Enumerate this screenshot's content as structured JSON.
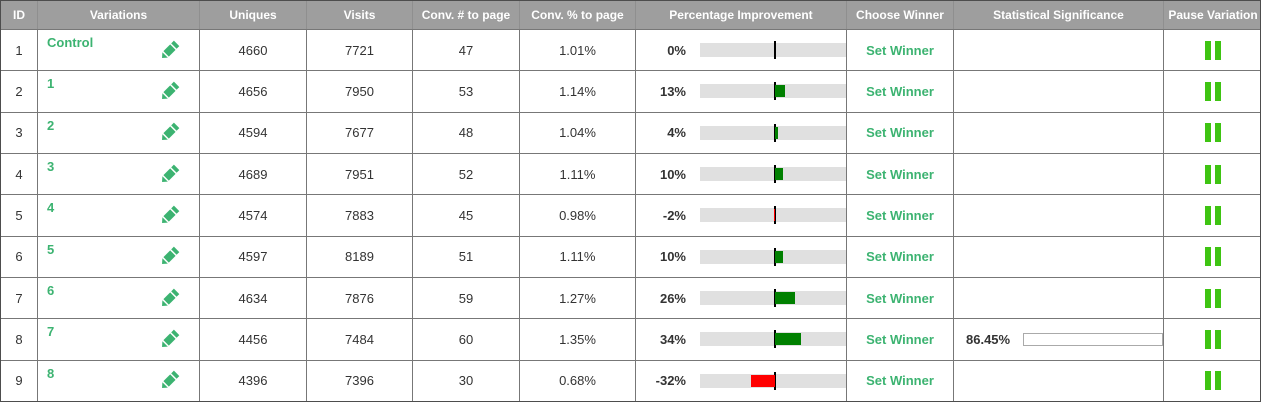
{
  "table": {
    "columns": [
      {
        "label": "ID"
      },
      {
        "label": "Variations"
      },
      {
        "label": "Uniques"
      },
      {
        "label": "Visits"
      },
      {
        "label": "Conv. # to page"
      },
      {
        "label": "Conv. % to page"
      },
      {
        "label": "Percentage Improvement"
      },
      {
        "label": "Choose Winner"
      },
      {
        "label": "Statistical Significance"
      },
      {
        "label": "Pause Variation"
      }
    ],
    "choose_winner_label": "Set Winner",
    "colors": {
      "accent_green": "#3cb371",
      "improvement_positive": "#008000",
      "improvement_negative": "#ff0000",
      "improvement_track": "#e0e0e0",
      "significance_fill": "#76c476",
      "pause_green": "#3ec412",
      "header_background": "#9e9e9e"
    },
    "rows": [
      {
        "id": "1",
        "name": "Control",
        "uniques": "4660",
        "visits": "7721",
        "conversions": "47",
        "conv_rate": "1.01%",
        "improvement": "0%",
        "improvement_value": 0,
        "significance": null,
        "significance_value": null
      },
      {
        "id": "2",
        "name": "1",
        "uniques": "4656",
        "visits": "7950",
        "conversions": "53",
        "conv_rate": "1.14%",
        "improvement": "13%",
        "improvement_value": 13,
        "significance": null,
        "significance_value": null
      },
      {
        "id": "3",
        "name": "2",
        "uniques": "4594",
        "visits": "7677",
        "conversions": "48",
        "conv_rate": "1.04%",
        "improvement": "4%",
        "improvement_value": 4,
        "significance": null,
        "significance_value": null
      },
      {
        "id": "4",
        "name": "3",
        "uniques": "4689",
        "visits": "7951",
        "conversions": "52",
        "conv_rate": "1.11%",
        "improvement": "10%",
        "improvement_value": 10,
        "significance": null,
        "significance_value": null
      },
      {
        "id": "5",
        "name": "4",
        "uniques": "4574",
        "visits": "7883",
        "conversions": "45",
        "conv_rate": "0.98%",
        "improvement": "-2%",
        "improvement_value": -2,
        "significance": null,
        "significance_value": null
      },
      {
        "id": "6",
        "name": "5",
        "uniques": "4597",
        "visits": "8189",
        "conversions": "51",
        "conv_rate": "1.11%",
        "improvement": "10%",
        "improvement_value": 10,
        "significance": null,
        "significance_value": null
      },
      {
        "id": "7",
        "name": "6",
        "uniques": "4634",
        "visits": "7876",
        "conversions": "59",
        "conv_rate": "1.27%",
        "improvement": "26%",
        "improvement_value": 26,
        "significance": null,
        "significance_value": null
      },
      {
        "id": "8",
        "name": "7",
        "uniques": "4456",
        "visits": "7484",
        "conversions": "60",
        "conv_rate": "1.35%",
        "improvement": "34%",
        "improvement_value": 34,
        "significance": "86.45%",
        "significance_value": 86.45
      },
      {
        "id": "9",
        "name": "8",
        "uniques": "4396",
        "visits": "7396",
        "conversions": "30",
        "conv_rate": "0.68%",
        "improvement": "-32%",
        "improvement_value": -32,
        "significance": null,
        "significance_value": null
      }
    ]
  }
}
